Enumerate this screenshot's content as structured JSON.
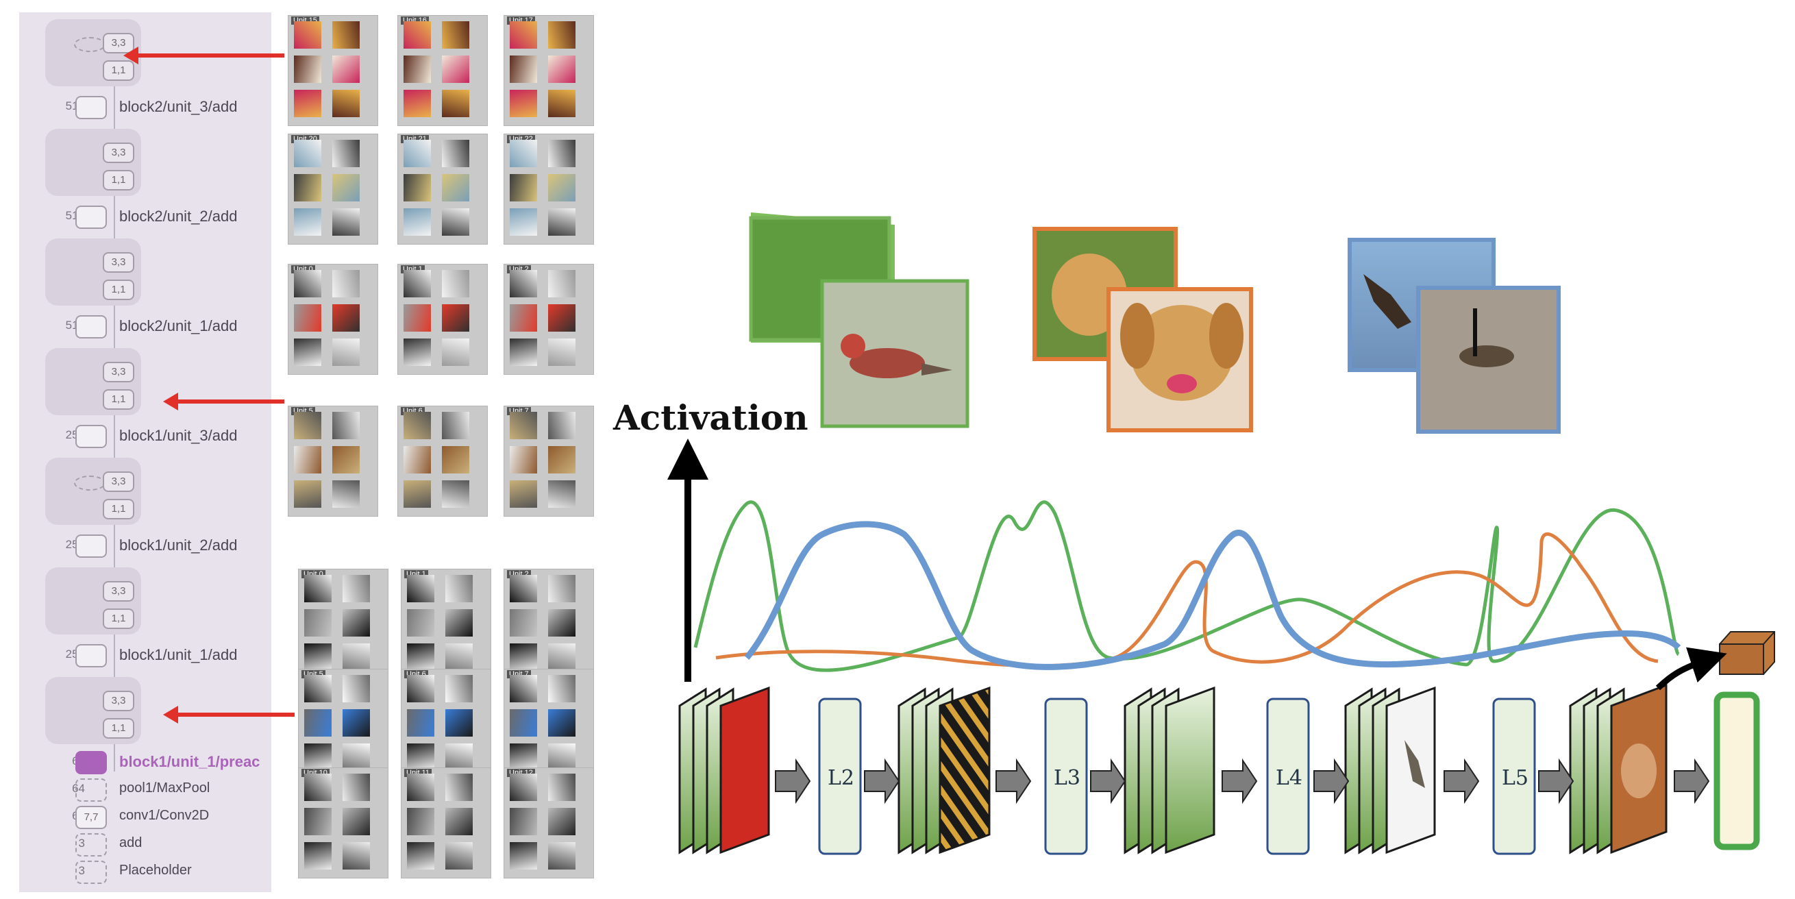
{
  "graph": {
    "nodes": [
      {
        "count": "512",
        "label": "block2/unit_3/add",
        "style": "solid"
      },
      {
        "count": "512",
        "label": "block2/unit_2/add",
        "style": "solid"
      },
      {
        "count": "512",
        "label": "block2/unit_1/add",
        "style": "solid"
      },
      {
        "count": "256",
        "label": "block1/unit_3/add",
        "style": "solid"
      },
      {
        "count": "256",
        "label": "block1/unit_2/add",
        "style": "solid"
      },
      {
        "count": "256",
        "label": "block1/unit_1/add",
        "style": "solid"
      },
      {
        "count": "64",
        "label": "block1/unit_1/preac",
        "style": "active"
      },
      {
        "count": "64",
        "label": "pool1/MaxPool",
        "style": "dashed"
      },
      {
        "count": "64",
        "label": "conv1/Conv2D",
        "style": "chip",
        "chip": "7,7"
      },
      {
        "count": "3",
        "label": "add",
        "style": "dashed"
      },
      {
        "count": "3",
        "label": "Placeholder",
        "style": "dashed"
      }
    ],
    "chip_a": "3,3",
    "chip_b": "1,1"
  },
  "unit_grids": {
    "row1": [
      "Unit 15",
      "Unit 16",
      "Unit 17"
    ],
    "row2": [
      "Unit 20",
      "Unit 21",
      "Unit 22"
    ],
    "row3": [
      "Unit 0",
      "Unit 1",
      "Unit 2"
    ],
    "row4": [
      "Unit 5",
      "Unit 6",
      "Unit 7"
    ],
    "row5": [
      "Unit 0",
      "Unit 1",
      "Unit 2"
    ],
    "row6": [
      "Unit 5",
      "Unit 6",
      "Unit 7"
    ],
    "row7": [
      "Unit 10",
      "Unit 11",
      "Unit 12"
    ]
  },
  "diagram": {
    "activation_label": "Activation",
    "layers": [
      "L2",
      "L3",
      "L4",
      "L5"
    ],
    "curve_colors": {
      "green": "#5bb05a",
      "orange": "#e08040",
      "blue": "#6a98d0"
    },
    "image_pairs": [
      "bird",
      "dog",
      "goose"
    ]
  },
  "colors": {
    "accent": "#a964b9",
    "arrow": "#e1302a",
    "layer_box": "#e8f1e0"
  }
}
